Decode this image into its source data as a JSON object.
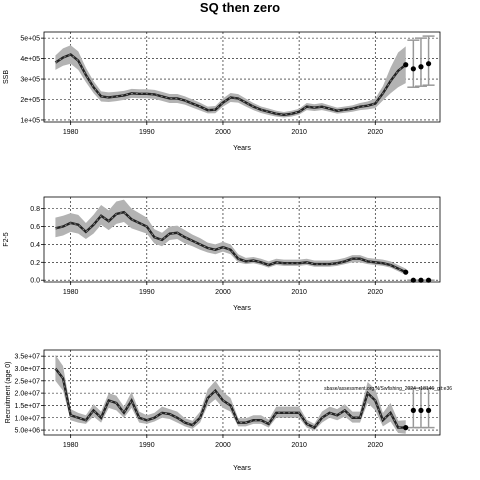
{
  "title": "SQ then zero",
  "chart_data": [
    {
      "type": "line",
      "ylabel": "SSB",
      "xlabel": "Years",
      "xlim": [
        1976.5,
        2028.5
      ],
      "ylim": [
        90000,
        530000
      ],
      "xticks": [
        1980,
        1990,
        2000,
        2010,
        2020
      ],
      "yticks": [
        100000,
        200000,
        300000,
        400000,
        500000
      ],
      "ytick_labels": [
        "1e+05",
        "2e+05",
        "3e+05",
        "4e+05",
        "5e+05"
      ],
      "grid": true,
      "series": [
        {
          "x": [
            1978,
            1979,
            1980,
            1981,
            1982,
            1983,
            1984,
            1985,
            1986,
            1987,
            1988,
            1989,
            1990,
            1991,
            1992,
            1993,
            1994,
            1995,
            1996,
            1997,
            1998,
            1999,
            2000,
            2001,
            2002,
            2003,
            2004,
            2005,
            2006,
            2007,
            2008,
            2009,
            2010,
            2011,
            2012,
            2013,
            2014,
            2015,
            2016,
            2017,
            2018,
            2019,
            2020,
            2021,
            2022,
            2023,
            2024
          ],
          "values": [
            380000,
            405000,
            420000,
            390000,
            320000,
            260000,
            215000,
            210000,
            215000,
            220000,
            230000,
            228000,
            228000,
            225000,
            215000,
            205000,
            205000,
            195000,
            180000,
            165000,
            148000,
            150000,
            185000,
            210000,
            205000,
            185000,
            165000,
            150000,
            140000,
            130000,
            125000,
            130000,
            140000,
            165000,
            160000,
            165000,
            155000,
            145000,
            150000,
            155000,
            165000,
            170000,
            180000,
            230000,
            290000,
            340000,
            370000
          ],
          "lower": [
            345000,
            365000,
            375000,
            345000,
            285000,
            232000,
            190000,
            188000,
            192000,
            198000,
            208000,
            206000,
            206000,
            203000,
            193000,
            183000,
            183000,
            175000,
            160000,
            146000,
            132000,
            133000,
            165000,
            188000,
            185000,
            166000,
            148000,
            134000,
            124000,
            116000,
            112000,
            116000,
            126000,
            148000,
            144000,
            148000,
            140000,
            131000,
            135000,
            140000,
            148000,
            152000,
            158000,
            195000,
            230000,
            260000,
            280000
          ],
          "upper": [
            415000,
            450000,
            465000,
            435000,
            355000,
            290000,
            240000,
            235000,
            238000,
            242000,
            252000,
            250000,
            250000,
            247000,
            237000,
            227000,
            227000,
            215000,
            200000,
            184000,
            165000,
            168000,
            205000,
            232000,
            226000,
            204000,
            183000,
            166000,
            156000,
            145000,
            139000,
            145000,
            155000,
            183000,
            177000,
            183000,
            171000,
            160000,
            166000,
            171000,
            183000,
            190000,
            205000,
            265000,
            355000,
            430000,
            460000
          ]
        }
      ],
      "projection": {
        "x": [
          2025,
          2026,
          2027
        ],
        "values": [
          350000,
          360000,
          375000
        ],
        "lower": [
          260000,
          265000,
          270000
        ],
        "upper": [
          490000,
          500000,
          510000
        ]
      }
    },
    {
      "type": "line",
      "ylabel": "F2-5",
      "xlabel": "Years",
      "xlim": [
        1976.5,
        2028.5
      ],
      "ylim": [
        -0.02,
        0.93
      ],
      "xticks": [
        1980,
        1990,
        2000,
        2010,
        2020
      ],
      "yticks": [
        0.0,
        0.2,
        0.4,
        0.6,
        0.8
      ],
      "ytick_labels": [
        "0.0",
        "0.2",
        "0.4",
        "0.6",
        "0.8"
      ],
      "grid": true,
      "series": [
        {
          "x": [
            1978,
            1979,
            1980,
            1981,
            1982,
            1983,
            1984,
            1985,
            1986,
            1987,
            1988,
            1989,
            1990,
            1991,
            1992,
            1993,
            1994,
            1995,
            1996,
            1997,
            1998,
            1999,
            2000,
            2001,
            2002,
            2003,
            2004,
            2005,
            2006,
            2007,
            2008,
            2009,
            2010,
            2011,
            2012,
            2013,
            2014,
            2015,
            2016,
            2017,
            2018,
            2019,
            2020,
            2021,
            2022,
            2023,
            2024
          ],
          "values": [
            0.58,
            0.6,
            0.64,
            0.62,
            0.54,
            0.62,
            0.72,
            0.66,
            0.74,
            0.76,
            0.68,
            0.64,
            0.6,
            0.48,
            0.45,
            0.52,
            0.53,
            0.48,
            0.44,
            0.4,
            0.36,
            0.34,
            0.37,
            0.34,
            0.24,
            0.21,
            0.22,
            0.2,
            0.17,
            0.2,
            0.19,
            0.19,
            0.19,
            0.2,
            0.18,
            0.18,
            0.18,
            0.19,
            0.21,
            0.24,
            0.24,
            0.21,
            0.2,
            0.19,
            0.17,
            0.13,
            0.09
          ],
          "lower": [
            0.48,
            0.5,
            0.54,
            0.52,
            0.46,
            0.52,
            0.62,
            0.56,
            0.63,
            0.65,
            0.58,
            0.55,
            0.52,
            0.41,
            0.38,
            0.45,
            0.46,
            0.41,
            0.38,
            0.34,
            0.31,
            0.29,
            0.32,
            0.29,
            0.2,
            0.18,
            0.19,
            0.17,
            0.14,
            0.17,
            0.16,
            0.16,
            0.16,
            0.17,
            0.15,
            0.15,
            0.15,
            0.16,
            0.18,
            0.2,
            0.2,
            0.18,
            0.17,
            0.16,
            0.14,
            0.1,
            0.06
          ],
          "upper": [
            0.7,
            0.72,
            0.75,
            0.73,
            0.64,
            0.73,
            0.84,
            0.78,
            0.88,
            0.9,
            0.8,
            0.75,
            0.7,
            0.57,
            0.53,
            0.6,
            0.61,
            0.56,
            0.51,
            0.47,
            0.42,
            0.4,
            0.43,
            0.4,
            0.29,
            0.25,
            0.26,
            0.24,
            0.21,
            0.24,
            0.23,
            0.23,
            0.23,
            0.24,
            0.22,
            0.22,
            0.22,
            0.23,
            0.25,
            0.28,
            0.28,
            0.25,
            0.24,
            0.23,
            0.21,
            0.17,
            0.13
          ]
        }
      ],
      "projection": {
        "x": [
          2025,
          2026,
          2027
        ],
        "values": [
          0.0,
          0.0,
          0.0
        ],
        "lower": [
          0.0,
          0.0,
          0.0
        ],
        "upper": [
          0.0,
          0.0,
          0.0
        ]
      }
    },
    {
      "type": "line",
      "ylabel": "Recruitment (age 0)",
      "xlabel": "Years",
      "xlim": [
        1976.5,
        2028.5
      ],
      "ylim": [
        3000000,
        37500000
      ],
      "xticks": [
        1980,
        1990,
        2000,
        2010,
        2020
      ],
      "yticks": [
        5000000,
        10000000,
        15000000,
        20000000,
        25000000,
        30000000,
        35000000
      ],
      "ytick_labels": [
        "5.0e+06",
        "1.0e+07",
        "1.5e+07",
        "2.0e+07",
        "2.5e+07",
        "3.0e+07",
        "3.5e+07"
      ],
      "grid": true,
      "annotations": [
        "sbase/assessment.org N/Swfishing_2024_r18146_git:e36"
      ],
      "series": [
        {
          "x": [
            1978,
            1979,
            1980,
            1981,
            1982,
            1983,
            1984,
            1985,
            1986,
            1987,
            1988,
            1989,
            1990,
            1991,
            1992,
            1993,
            1994,
            1995,
            1996,
            1997,
            1998,
            1999,
            2000,
            2001,
            2002,
            2003,
            2004,
            2005,
            2006,
            2007,
            2008,
            2009,
            2010,
            2011,
            2012,
            2013,
            2014,
            2015,
            2016,
            2017,
            2018,
            2019,
            2020,
            2021,
            2022,
            2023,
            2024
          ],
          "values": [
            30000000,
            26000000,
            11000000,
            10000000,
            9000000,
            13000000,
            10000000,
            17000000,
            16000000,
            12000000,
            17000000,
            10000000,
            9000000,
            10000000,
            12000000,
            11500000,
            10000000,
            8000000,
            7000000,
            10000000,
            18000000,
            21000000,
            17000000,
            15000000,
            8000000,
            8000000,
            9000000,
            9000000,
            7500000,
            12000000,
            12000000,
            12000000,
            12000000,
            7500000,
            6000000,
            10000000,
            12000000,
            11000000,
            13000000,
            10000000,
            10000000,
            20000000,
            17000000,
            9000000,
            12000000,
            6000000,
            6000000
          ],
          "lower": [
            25000000,
            21000000,
            9000000,
            8000000,
            7500000,
            10500000,
            8000000,
            14000000,
            13000000,
            10000000,
            14000000,
            8000000,
            7500000,
            8500000,
            10000000,
            9500000,
            8000000,
            6500000,
            5500000,
            8000000,
            15000000,
            17500000,
            14000000,
            12500000,
            6500000,
            6500000,
            7500000,
            7500000,
            6000000,
            10000000,
            10000000,
            10000000,
            10000000,
            6000000,
            4800000,
            8000000,
            10000000,
            9000000,
            10500000,
            8000000,
            8000000,
            16000000,
            13000000,
            6500000,
            8500000,
            3800000,
            3500000
          ],
          "upper": [
            35500000,
            31000000,
            13500000,
            12000000,
            11000000,
            15500000,
            12500000,
            20000000,
            19000000,
            14500000,
            20500000,
            12500000,
            11000000,
            12000000,
            14500000,
            13500000,
            12500000,
            9800000,
            8800000,
            12500000,
            21500000,
            25000000,
            20500000,
            18000000,
            9800000,
            9800000,
            11000000,
            11000000,
            9200000,
            14500000,
            14500000,
            14500000,
            14500000,
            9200000,
            7500000,
            12500000,
            14500000,
            13500000,
            15500000,
            12500000,
            12500000,
            24500000,
            21500000,
            12000000,
            16000000,
            8800000,
            9000000
          ]
        }
      ],
      "projection": {
        "x": [
          2025,
          2026,
          2027
        ],
        "values": [
          13000000,
          13000000,
          13000000
        ],
        "lower": [
          6000000,
          6000000,
          6000000
        ],
        "upper": [
          22000000,
          22000000,
          22000000
        ]
      }
    }
  ]
}
